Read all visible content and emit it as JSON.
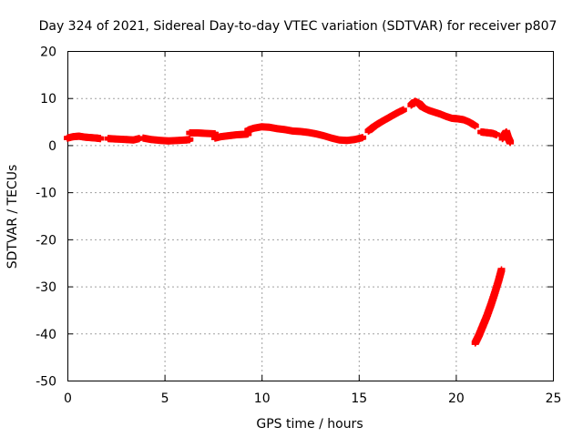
{
  "chart_data": {
    "type": "scatter",
    "title": "Day 324 of 2021, Sidereal Day-to-day VTEC variation (SDTVAR) for receiver p807",
    "xlabel": "GPS time / hours",
    "ylabel": "SDTVAR / TECUs",
    "xlim": [
      0,
      25
    ],
    "ylim": [
      -50,
      20
    ],
    "xticks": [
      0,
      5,
      10,
      15,
      20,
      25
    ],
    "yticks": [
      -50,
      -40,
      -30,
      -20,
      -10,
      0,
      10,
      20
    ],
    "xtick_labels": [
      "0",
      "5",
      "10",
      "15",
      "20",
      "25"
    ],
    "ytick_labels": [
      "-50",
      "-40",
      "-30",
      "-20",
      "-10",
      "0",
      "10",
      "20"
    ],
    "grid": true,
    "marker": "+",
    "color": "#ff0000",
    "series": [
      {
        "name": "SDTVAR",
        "segments": [
          {
            "x": [
              0.0,
              0.3,
              0.6,
              0.9,
              1.2,
              1.5,
              1.7
            ],
            "y": [
              1.5,
              1.8,
              1.9,
              1.7,
              1.6,
              1.5,
              1.4
            ]
          },
          {
            "x": [
              2.1,
              2.5,
              3.0,
              3.4,
              3.7
            ],
            "y": [
              1.4,
              1.3,
              1.2,
              1.1,
              1.4
            ]
          },
          {
            "x": [
              3.9,
              4.3,
              4.8,
              5.2,
              5.7,
              6.1,
              6.3
            ],
            "y": [
              1.5,
              1.2,
              1.0,
              0.9,
              1.0,
              1.1,
              1.2
            ]
          },
          {
            "x": [
              6.3,
              6.7,
              7.1,
              7.6
            ],
            "y": [
              2.6,
              2.6,
              2.5,
              2.4
            ]
          },
          {
            "x": [
              7.6,
              7.9,
              8.3,
              8.7,
              9.1,
              9.3
            ],
            "y": [
              1.5,
              1.8,
              2.0,
              2.2,
              2.3,
              2.4
            ]
          },
          {
            "x": [
              9.3,
              9.6,
              10.0,
              10.4,
              10.8,
              11.2,
              11.6,
              12.0,
              12.4,
              12.8,
              13.2,
              13.6,
              14.0,
              14.4,
              14.8,
              15.2
            ],
            "y": [
              3.2,
              3.6,
              3.9,
              3.8,
              3.5,
              3.3,
              3.0,
              2.9,
              2.7,
              2.4,
              2.0,
              1.5,
              1.1,
              1.0,
              1.2,
              1.6
            ]
          },
          {
            "x": [
              15.5,
              15.8,
              16.1,
              16.4,
              16.7,
              17.0,
              17.3
            ],
            "y": [
              3.0,
              4.0,
              4.8,
              5.5,
              6.2,
              6.9,
              7.5
            ]
          },
          {
            "x": [
              17.7,
              17.9,
              18.1,
              18.3,
              18.6,
              18.9,
              19.2,
              19.5,
              19.8,
              20.1,
              20.4,
              20.7,
              21.0
            ],
            "y": [
              8.5,
              9.3,
              8.9,
              8.0,
              7.4,
              7.0,
              6.6,
              6.1,
              5.7,
              5.6,
              5.4,
              4.9,
              4.1
            ]
          },
          {
            "x": [
              21.3,
              21.5,
              21.7,
              21.9,
              22.1
            ],
            "y": [
              2.8,
              2.7,
              2.6,
              2.5,
              2.2
            ]
          },
          {
            "x": [
              22.4,
              22.5,
              22.6,
              22.7,
              22.8
            ],
            "y": [
              1.4,
              2.2,
              2.8,
              1.5,
              0.6
            ]
          },
          {
            "x": [
              21.0,
              21.2,
              21.4,
              21.6,
              21.8,
              22.0,
              22.2,
              22.35
            ],
            "y": [
              -42.0,
              -40.3,
              -38.3,
              -36.3,
              -34.0,
              -31.5,
              -28.8,
              -26.5
            ]
          }
        ]
      }
    ]
  }
}
